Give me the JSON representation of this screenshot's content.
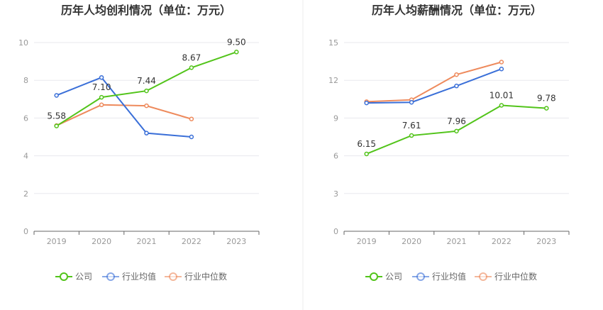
{
  "colors": {
    "company": "#52c41a",
    "industry_avg": "#3a6fd8",
    "industry_median": "#ee8a5c",
    "axis": "#666666",
    "grid": "#e8e8ee",
    "divider": "#eeeeee"
  },
  "legend": {
    "company": "公司",
    "industry_avg": "行业均值",
    "industry_median": "行业中位数"
  },
  "chart_data": [
    {
      "type": "line",
      "title": "历年人均创利情况（单位：万元）",
      "categories": [
        "2019",
        "2020",
        "2021",
        "2022",
        "2023"
      ],
      "ylim": [
        0,
        10
      ],
      "yticks": [
        0,
        2,
        4,
        6,
        8,
        10
      ],
      "series": [
        {
          "key": "company",
          "name": "公司",
          "values": [
            5.58,
            7.1,
            7.44,
            8.67,
            9.5
          ],
          "labels": [
            "5.58",
            "7.10",
            "7.44",
            "8.67",
            "9.50"
          ]
        },
        {
          "key": "industry_avg",
          "name": "行业均值",
          "values": [
            7.2,
            8.15,
            5.2,
            5.0,
            null
          ]
        },
        {
          "key": "industry_median",
          "name": "行业中位数",
          "values": [
            5.6,
            6.7,
            6.65,
            5.95,
            null
          ]
        }
      ]
    },
    {
      "type": "line",
      "title": "历年人均薪酬情况（单位：万元）",
      "categories": [
        "2019",
        "2020",
        "2021",
        "2022",
        "2023"
      ],
      "ylim": [
        0,
        15
      ],
      "yticks": [
        0,
        3,
        6,
        9,
        12,
        15
      ],
      "series": [
        {
          "key": "company",
          "name": "公司",
          "values": [
            6.15,
            7.61,
            7.96,
            10.01,
            9.78
          ],
          "labels": [
            "6.15",
            "7.61",
            "7.96",
            "10.01",
            "9.78"
          ]
        },
        {
          "key": "industry_avg",
          "name": "行业均值",
          "values": [
            10.2,
            10.25,
            11.55,
            12.9,
            null
          ]
        },
        {
          "key": "industry_median",
          "name": "行业中位数",
          "values": [
            10.3,
            10.45,
            12.45,
            13.45,
            null
          ]
        }
      ]
    }
  ]
}
